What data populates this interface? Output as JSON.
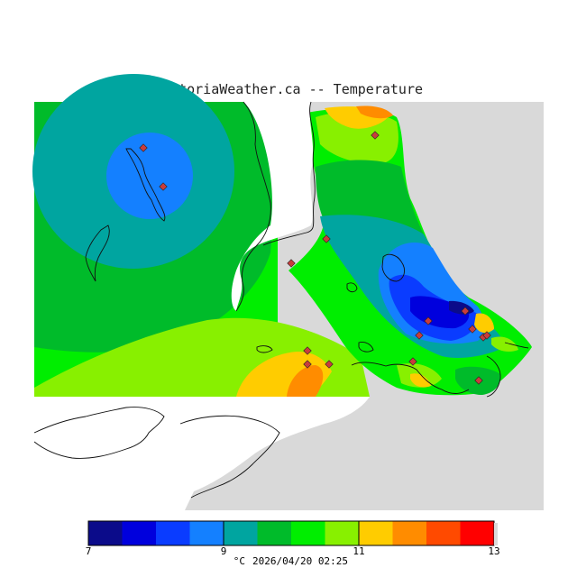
{
  "title": "VictoriaWeather.ca -- Temperature",
  "colors": {
    "background_land": "#d9d9d9",
    "water": "#ffffff",
    "c7": "#0b0b8a",
    "c7_5": "#0000dd",
    "c8": "#0a3cff",
    "c8_5": "#1480ff",
    "c9": "#00a5a0",
    "c9_5": "#00bb2a",
    "c10": "#00ee00",
    "c10_5": "#88f000",
    "c11": "#ffcc00",
    "c11_5": "#ff8c00",
    "c12": "#ff4a00",
    "c12_5": "#ff0000",
    "station": "#c83c3c"
  },
  "legend": {
    "ticks": [
      "7",
      "9",
      "11",
      "13"
    ],
    "unit": "°C",
    "timestamp": "2026/04/20 02:25"
  }
}
